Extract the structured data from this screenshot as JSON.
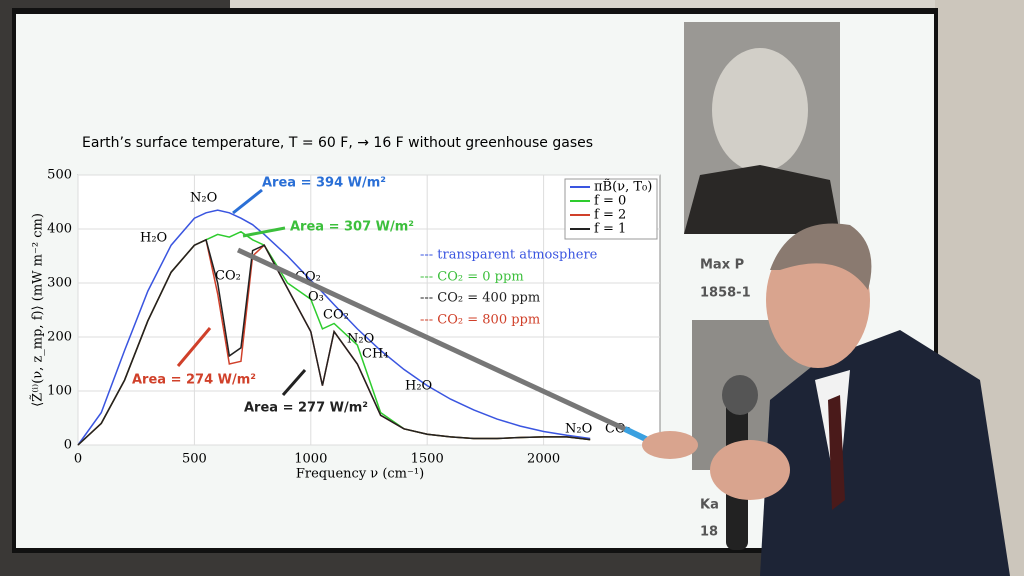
{
  "chart_data": {
    "type": "line",
    "title": "Earth’s surface temperature, T = 60 F,  →   16 F without greenhouse gases",
    "x_label": "Frequency ν (cm⁻¹)",
    "y_label": "⟨Z̃⁽ⁱ⁾(ν, z_mp, f)⟩ (mW m⁻² cm)",
    "x": [
      0,
      100,
      200,
      300,
      400,
      500,
      550,
      600,
      650,
      700,
      750,
      800,
      900,
      1000,
      1050,
      1100,
      1200,
      1300,
      1400,
      1500,
      1600,
      1700,
      1800,
      1900,
      2000,
      2100,
      2200
    ],
    "series": [
      {
        "name": "πB̃(ν, T₀)",
        "color": "#3a55e0",
        "values": [
          0,
          60,
          175,
          285,
          370,
          420,
          430,
          435,
          430,
          420,
          408,
          390,
          350,
          305,
          283,
          260,
          215,
          175,
          140,
          110,
          85,
          65,
          48,
          35,
          25,
          18,
          12
        ]
      },
      {
        "name": "f = 0",
        "color": "#2ecc2e",
        "values": [
          0,
          40,
          120,
          230,
          320,
          370,
          380,
          390,
          385,
          395,
          380,
          370,
          300,
          270,
          215,
          225,
          185,
          60,
          30,
          20,
          15,
          12,
          12,
          14,
          15,
          15,
          10
        ]
      },
      {
        "name": "f = 2",
        "color": "#d0402a",
        "values": [
          0,
          40,
          120,
          230,
          320,
          370,
          380,
          280,
          150,
          155,
          350,
          370,
          290,
          210,
          110,
          210,
          150,
          55,
          30,
          20,
          15,
          12,
          12,
          14,
          15,
          15,
          10
        ]
      },
      {
        "name": "f = 1",
        "color": "#222222",
        "values": [
          0,
          40,
          120,
          230,
          320,
          370,
          380,
          300,
          165,
          180,
          360,
          370,
          290,
          210,
          110,
          210,
          150,
          55,
          30,
          20,
          15,
          12,
          12,
          14,
          15,
          15,
          10
        ]
      }
    ],
    "xlim": [
      0,
      2500
    ],
    "ylim": [
      0,
      500
    ],
    "xticks": [
      0,
      500,
      1000,
      1500,
      2000
    ],
    "yticks": [
      0,
      100,
      200,
      300,
      400,
      500
    ],
    "grid": true,
    "annotations": {
      "area_planck": "Area = 394 W/m²",
      "area_f0": "Area = 307 W/m²",
      "area_f2": "Area = 274 W/m²",
      "area_f1": "Area = 277 W/m²",
      "molecules": [
        "N₂O",
        "H₂O",
        "CO₂",
        "CO₂",
        "O₃",
        "CO₂",
        "N₂O",
        "CH₄",
        "H₂O",
        "N₂O",
        "CO₂"
      ]
    },
    "notes": [
      "--- transparent atmosphere",
      "--- CO₂ = 0 ppm",
      "--- CO₂ = 400 ppm",
      "--- CO₂ = 800 ppm"
    ]
  },
  "slide": {
    "name_1": "Max P",
    "years_1": "1858-1",
    "name_2": "Ka",
    "years_2": "18"
  }
}
